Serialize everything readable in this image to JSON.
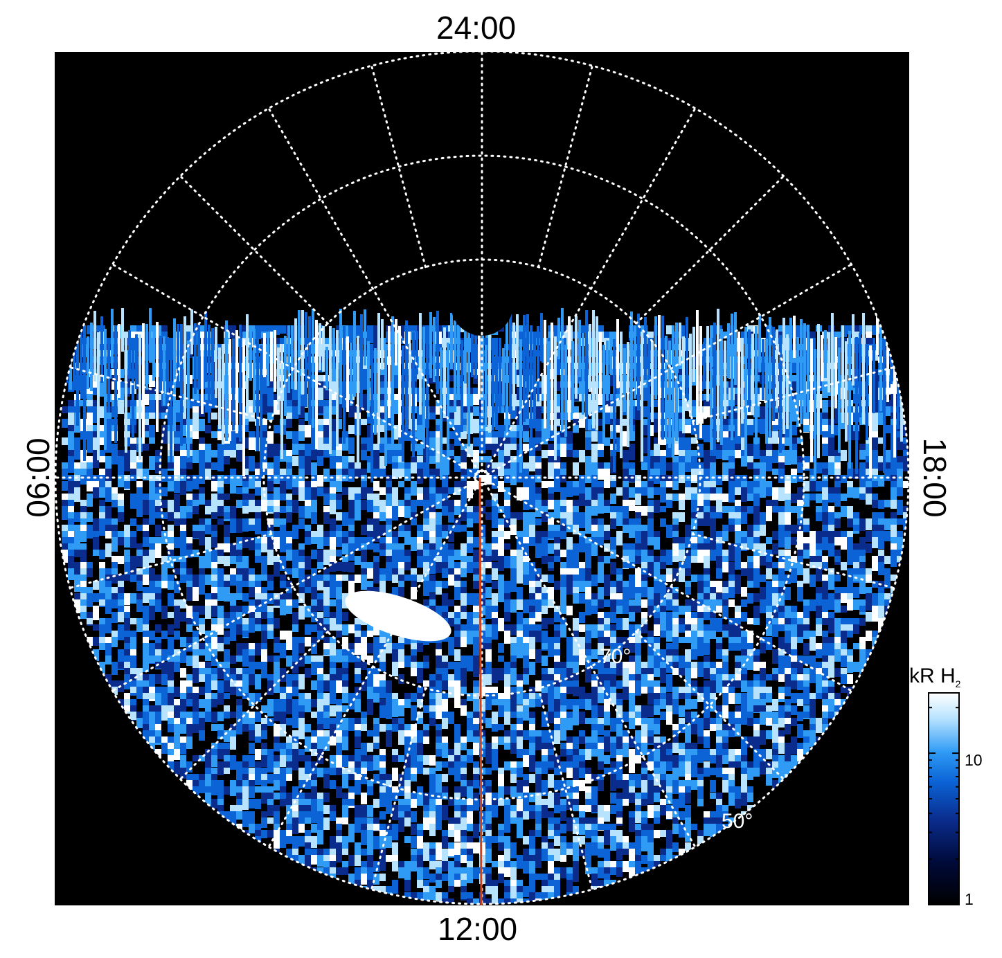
{
  "local_time_labels": {
    "top": "24:00",
    "bottom": "12:00",
    "left": "06:00",
    "right": "18:00"
  },
  "latitude_labels": [
    "70°",
    "50°"
  ],
  "colorbar": {
    "unit_main": "kR H",
    "unit_sub": "2",
    "scale": "log",
    "tick_labels": [
      "10",
      "1"
    ],
    "colors": [
      "#000000",
      "#000a3a",
      "#0a2c8c",
      "#0b63d6",
      "#2f9bf5",
      "#b8e3ff",
      "#ffffff"
    ]
  },
  "overlay": {
    "meridian_line_color": "#d0421a",
    "grid_color": "#ffffff",
    "background_color": "#000000"
  }
}
